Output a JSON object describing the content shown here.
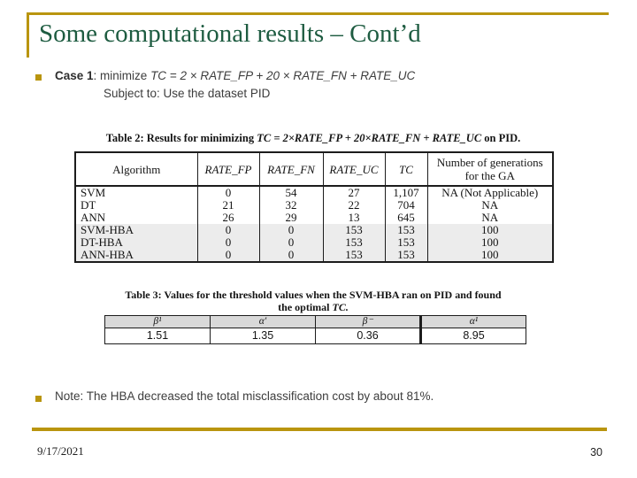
{
  "slide": {
    "title": "Some computational results – Cont’d",
    "footer_date": "9/17/2021",
    "footer_page": "30"
  },
  "case1": {
    "label": "Case 1",
    "lead": ": minimize ",
    "formula": "TC = 2 × RATE_FP + 20 × RATE_FN + RATE_UC",
    "subject": "Subject to: Use the dataset PID"
  },
  "note": {
    "text": "Note: The HBA decreased the total misclassification cost by about 81%."
  },
  "table2": {
    "caption_prefix": "Table 2: Results for minimizing ",
    "caption_formula": "TC = 2×RATE_FP + 20×RATE_FN + RATE_UC",
    "caption_suffix": " on PID.",
    "columns": [
      "Algorithm",
      "RATE_FP",
      "RATE_FN",
      "RATE_UC",
      "TC",
      "Number of generations for the GA"
    ],
    "rows": [
      [
        "SVM",
        "0",
        "54",
        "27",
        "1,107",
        "NA (Not Applicable)"
      ],
      [
        "DT",
        "21",
        "32",
        "22",
        "704",
        "NA"
      ],
      [
        "ANN",
        "26",
        "29",
        "13",
        "645",
        "NA"
      ],
      [
        "SVM-HBA",
        "0",
        "0",
        "153",
        "153",
        "100"
      ],
      [
        "DT-HBA",
        "0",
        "0",
        "153",
        "153",
        "100"
      ],
      [
        "ANN-HBA",
        "0",
        "0",
        "153",
        "153",
        "100"
      ]
    ]
  },
  "table3": {
    "caption_line1": "Table 3: Values for the threshold values when the SVM-HBA ran on PID and found",
    "caption_line2_prefix": "the optimal ",
    "caption_line2_formula": "TC.",
    "headers": [
      "β¹",
      "α′",
      "β⁻",
      "α¹"
    ],
    "values": [
      "1.51",
      "1.35",
      "0.36",
      "8.95"
    ]
  },
  "colors": {
    "accent_gold": "#B9950F",
    "title_green": "#1E5C41"
  }
}
